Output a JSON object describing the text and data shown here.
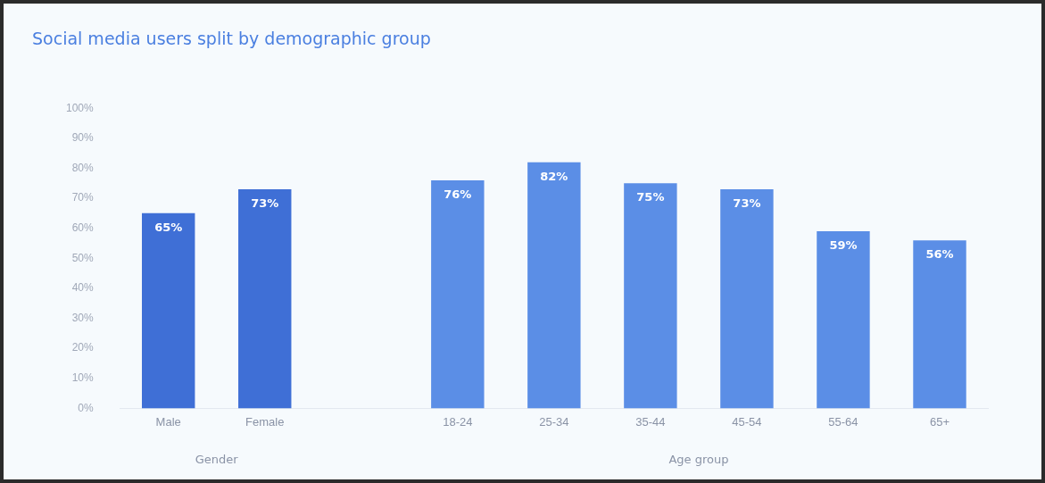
{
  "chart_data": {
    "type": "bar",
    "title": "Social media users split by demographic group",
    "categories": [
      "Male",
      "Female",
      null,
      "18-24",
      "25-34",
      "35-44",
      "45-54",
      "55-64",
      "65+"
    ],
    "values": [
      65,
      73,
      null,
      76,
      82,
      75,
      73,
      59,
      56
    ],
    "colors": [
      "#3f6fd6",
      "#3f6fd6",
      null,
      "#5b8ee6",
      "#5b8ee6",
      "#5b8ee6",
      "#5b8ee6",
      "#5b8ee6",
      "#5b8ee6"
    ],
    "value_labels": [
      "65%",
      "73%",
      null,
      "76%",
      "82%",
      "75%",
      "73%",
      "59%",
      "56%"
    ],
    "ylim": [
      0,
      100
    ],
    "yticks": [
      {
        "value": 0,
        "label": "0%"
      },
      {
        "value": 10,
        "label": "10%"
      },
      {
        "value": 20,
        "label": "20%"
      },
      {
        "value": 30,
        "label": "30%"
      },
      {
        "value": 40,
        "label": "40%"
      },
      {
        "value": 50,
        "label": "50%"
      },
      {
        "value": 60,
        "label": "60%"
      },
      {
        "value": 70,
        "label": "70%"
      },
      {
        "value": 80,
        "label": "80%"
      },
      {
        "value": 90,
        "label": "90%"
      },
      {
        "value": 100,
        "label": "100%"
      }
    ],
    "annotations": [
      "Gender",
      "Age group"
    ]
  }
}
